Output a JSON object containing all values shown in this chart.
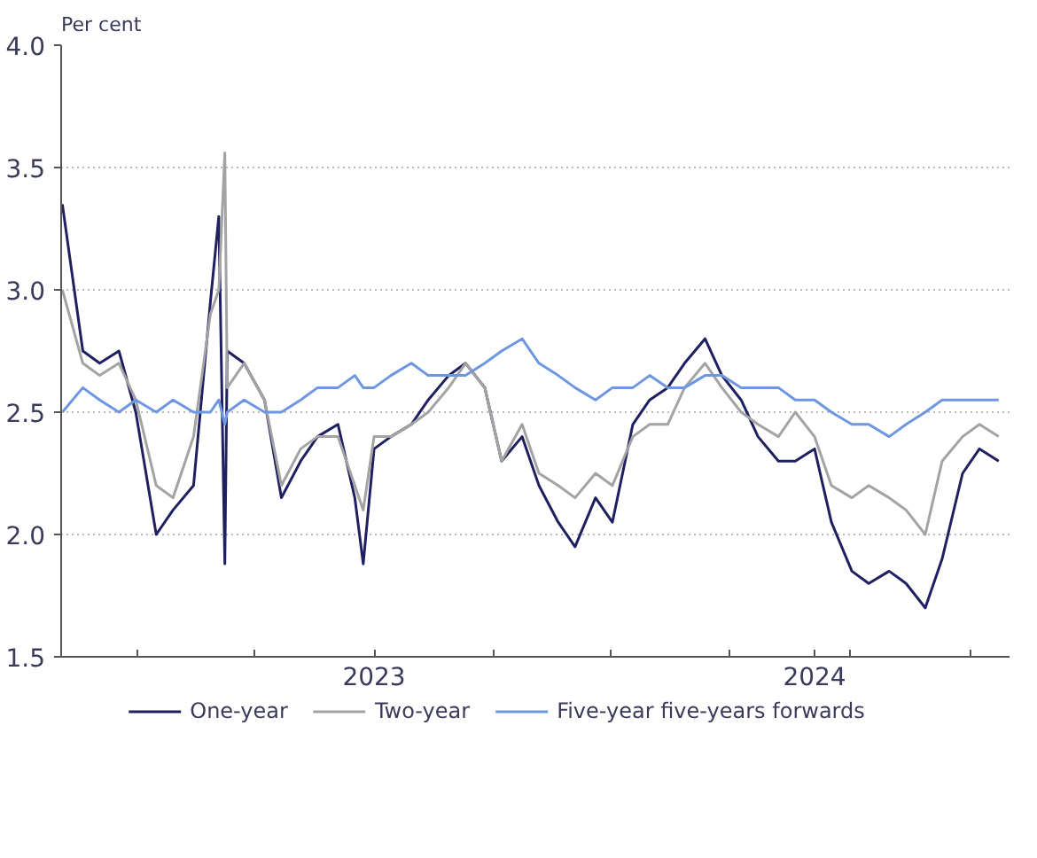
{
  "chart_data": {
    "type": "line",
    "ylabel": "Per cent",
    "x": [
      "2022-10-15",
      "2022-11-01",
      "2022-11-15",
      "2022-12-01",
      "2022-12-15",
      "2023-01-01",
      "2023-01-15",
      "2023-02-01",
      "2023-02-15",
      "2023-02-22",
      "2023-02-27",
      "2023-03-01",
      "2023-03-15",
      "2023-04-01",
      "2023-04-15",
      "2023-05-01",
      "2023-05-15",
      "2023-06-01",
      "2023-06-15",
      "2023-06-22",
      "2023-07-01",
      "2023-07-15",
      "2023-08-01",
      "2023-08-15",
      "2023-09-01",
      "2023-09-15",
      "2023-10-01",
      "2023-10-15",
      "2023-11-01",
      "2023-11-15",
      "2023-12-01",
      "2023-12-15",
      "2024-01-01",
      "2024-01-15",
      "2024-02-01",
      "2024-02-15",
      "2024-03-01",
      "2024-03-15",
      "2024-04-01",
      "2024-04-15",
      "2024-05-01",
      "2024-05-15",
      "2024-06-01",
      "2024-06-15",
      "2024-07-01",
      "2024-07-15",
      "2024-08-01",
      "2024-08-15",
      "2024-09-01",
      "2024-09-15",
      "2024-10-01",
      "2024-10-15",
      "2024-11-01",
      "2024-11-15",
      "2024-12-01"
    ],
    "series": [
      {
        "name": "One-year",
        "color": "#1f2060",
        "values": [
          3.35,
          2.75,
          2.7,
          2.75,
          2.5,
          2.0,
          2.1,
          2.2,
          2.95,
          3.3,
          1.88,
          2.75,
          2.7,
          2.55,
          2.15,
          2.3,
          2.4,
          2.45,
          2.15,
          1.88,
          2.35,
          2.4,
          2.45,
          2.55,
          2.65,
          2.7,
          2.6,
          2.3,
          2.4,
          2.2,
          2.05,
          1.95,
          2.15,
          2.05,
          2.45,
          2.55,
          2.6,
          2.7,
          2.8,
          2.65,
          2.55,
          2.4,
          2.3,
          2.3,
          2.35,
          2.05,
          1.85,
          1.8,
          1.85,
          1.8,
          1.7,
          1.9,
          2.25,
          2.35,
          2.3
        ]
      },
      {
        "name": "Two-year",
        "color": "#a3a3a3",
        "values": [
          3.0,
          2.7,
          2.65,
          2.7,
          2.55,
          2.2,
          2.15,
          2.4,
          2.9,
          3.0,
          3.56,
          2.6,
          2.7,
          2.55,
          2.2,
          2.35,
          2.4,
          2.4,
          2.2,
          2.1,
          2.4,
          2.4,
          2.45,
          2.5,
          2.6,
          2.7,
          2.6,
          2.3,
          2.45,
          2.25,
          2.2,
          2.15,
          2.25,
          2.2,
          2.4,
          2.45,
          2.45,
          2.6,
          2.7,
          2.6,
          2.5,
          2.45,
          2.4,
          2.5,
          2.4,
          2.2,
          2.15,
          2.2,
          2.15,
          2.1,
          2.0,
          2.3,
          2.4,
          2.45,
          2.4
        ]
      },
      {
        "name": "Five-year five-years forwards",
        "color": "#6f96e0",
        "values": [
          2.5,
          2.6,
          2.55,
          2.5,
          2.55,
          2.5,
          2.55,
          2.5,
          2.5,
          2.55,
          2.45,
          2.5,
          2.55,
          2.5,
          2.5,
          2.55,
          2.6,
          2.6,
          2.65,
          2.6,
          2.6,
          2.65,
          2.7,
          2.65,
          2.65,
          2.65,
          2.7,
          2.75,
          2.8,
          2.7,
          2.65,
          2.6,
          2.55,
          2.6,
          2.6,
          2.65,
          2.6,
          2.6,
          2.65,
          2.65,
          2.6,
          2.6,
          2.6,
          2.55,
          2.55,
          2.5,
          2.45,
          2.45,
          2.4,
          2.45,
          2.5,
          2.55,
          2.55,
          2.55,
          2.55
        ]
      }
    ],
    "xlim": [
      "2022-10-14",
      "2024-12-10"
    ],
    "xticks": [
      {
        "value": "2022-12-16",
        "label": null
      },
      {
        "value": "2023-03-24",
        "label": null
      },
      {
        "value": "2023-07-01",
        "label": "2023"
      },
      {
        "value": "2023-10-08",
        "label": null
      },
      {
        "value": "2024-01-14",
        "label": null
      },
      {
        "value": "2024-04-22",
        "label": null
      },
      {
        "value": "2024-07-01",
        "label": "2024"
      },
      {
        "value": "2024-07-30",
        "label": null
      },
      {
        "value": "2024-11-07",
        "label": null
      }
    ],
    "ylim": [
      1.5,
      4.0
    ],
    "yticks": [
      {
        "value": 1.5,
        "label": "1.5"
      },
      {
        "value": 2.0,
        "label": "2.0"
      },
      {
        "value": 2.5,
        "label": "2.5"
      },
      {
        "value": 3.0,
        "label": "3.0"
      },
      {
        "value": 3.5,
        "label": "3.5"
      },
      {
        "value": 4.0,
        "label": "4.0"
      }
    ],
    "grid": "y",
    "legend": "bottom",
    "line_style": "solid",
    "marker": "none"
  }
}
